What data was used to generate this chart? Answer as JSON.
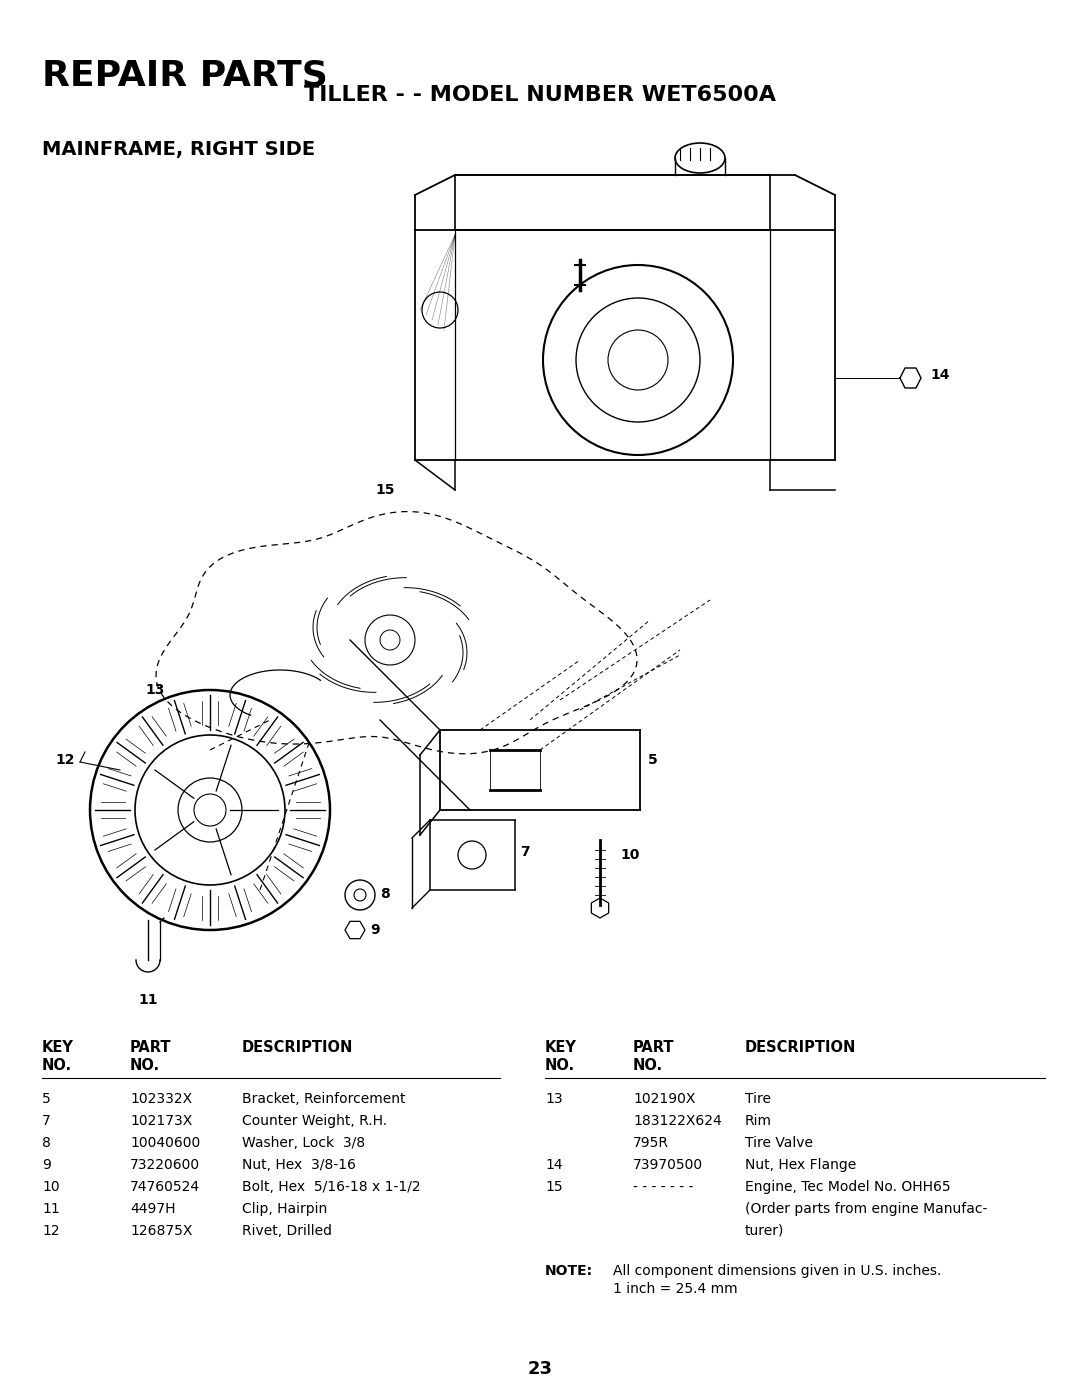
{
  "bg_color": "#ffffff",
  "title_repair": "REPAIR PARTS",
  "title_model": "TILLER - - MODEL NUMBER WET6500A",
  "section_title": "MAINFRAME, RIGHT SIDE",
  "page_number": "23",
  "left_table_rows": [
    [
      "5",
      "102332X",
      "Bracket, Reinforcement"
    ],
    [
      "7",
      "102173X",
      "Counter Weight, R.H."
    ],
    [
      "8",
      "10040600",
      "Washer, Lock  3/8"
    ],
    [
      "9",
      "73220600",
      "Nut, Hex  3/8-16"
    ],
    [
      "10",
      "74760524",
      "Bolt, Hex  5/16-18 x 1-1/2"
    ],
    [
      "11",
      "4497H",
      "Clip, Hairpin"
    ],
    [
      "12",
      "126875X",
      "Rivet, Drilled"
    ]
  ],
  "right_table_rows": [
    [
      "13",
      "102190X",
      "Tire"
    ],
    [
      "",
      "183122X624",
      "Rim"
    ],
    [
      "",
      "795R",
      "Tire Valve"
    ],
    [
      "14",
      "73970500",
      "Nut, Hex Flange"
    ],
    [
      "15",
      "- - - - - - -",
      "Engine, Tec Model No. OHH65"
    ],
    [
      "",
      "",
      "(Order parts from engine Manufac-"
    ],
    [
      "",
      "",
      "turer)"
    ]
  ],
  "note_label": "NOTE:",
  "note_lines": [
    "All component dimensions given in U.S. inches.",
    "1 inch = 25.4 mm"
  ]
}
